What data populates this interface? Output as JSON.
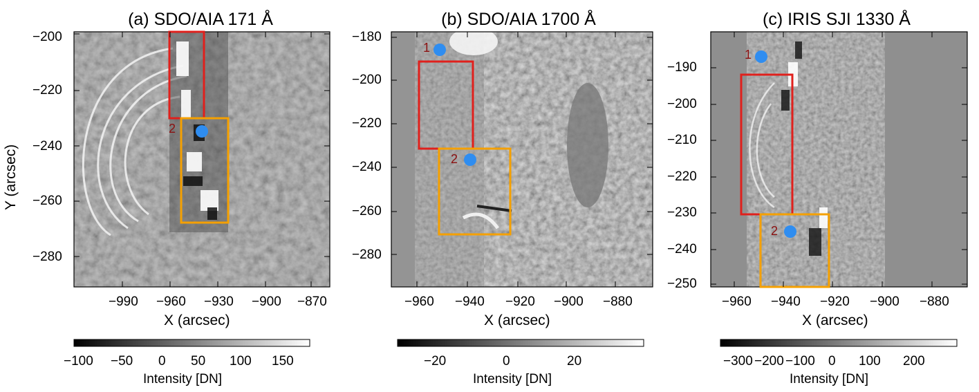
{
  "figure": {
    "ylabel": "Y (arcsec)",
    "panels": [
      {
        "title": "(a) SDO/AIA 171 Å",
        "xlabel": "X (arcsec)",
        "xticks": [
          "−990",
          "−960",
          "−930",
          "−900",
          "−870"
        ],
        "yticks": [
          "−200",
          "−220",
          "−240",
          "−260",
          "−280"
        ],
        "point_labels": [
          "2"
        ],
        "colorbar": {
          "label": "Intensity [DN]",
          "ticks": [
            "−100",
            "−50",
            "0",
            "50",
            "100",
            "150"
          ]
        }
      },
      {
        "title": "(b) SDO/AIA 1700 Å",
        "xlabel": "X (arcsec)",
        "xticks": [
          "−960",
          "−940",
          "−920",
          "−900",
          "−880"
        ],
        "yticks": [
          "−180",
          "−200",
          "−220",
          "−240",
          "−260",
          "−280"
        ],
        "point_labels": [
          "1",
          "2"
        ],
        "colorbar": {
          "label": "Intensity [DN]",
          "ticks": [
            "−20",
            "0",
            "20"
          ]
        }
      },
      {
        "title": "(c) IRIS SJI 1330 Å",
        "xlabel": "X (arcsec)",
        "xticks": [
          "−960",
          "−940",
          "−920",
          "−900",
          "−880"
        ],
        "yticks": [
          "−190",
          "−200",
          "−210",
          "−220",
          "−230",
          "−240",
          "−250"
        ],
        "point_labels": [
          "1",
          "2"
        ],
        "colorbar": {
          "label": "Intensity [DN]",
          "ticks": [
            "−300",
            "−200",
            "−100",
            "0",
            "100",
            "200"
          ]
        }
      }
    ],
    "colors": {
      "box_red": "#e0201c",
      "box_orange": "#f5a000",
      "point_blue": "#2f8df0",
      "point_label": "#8b1010"
    }
  }
}
